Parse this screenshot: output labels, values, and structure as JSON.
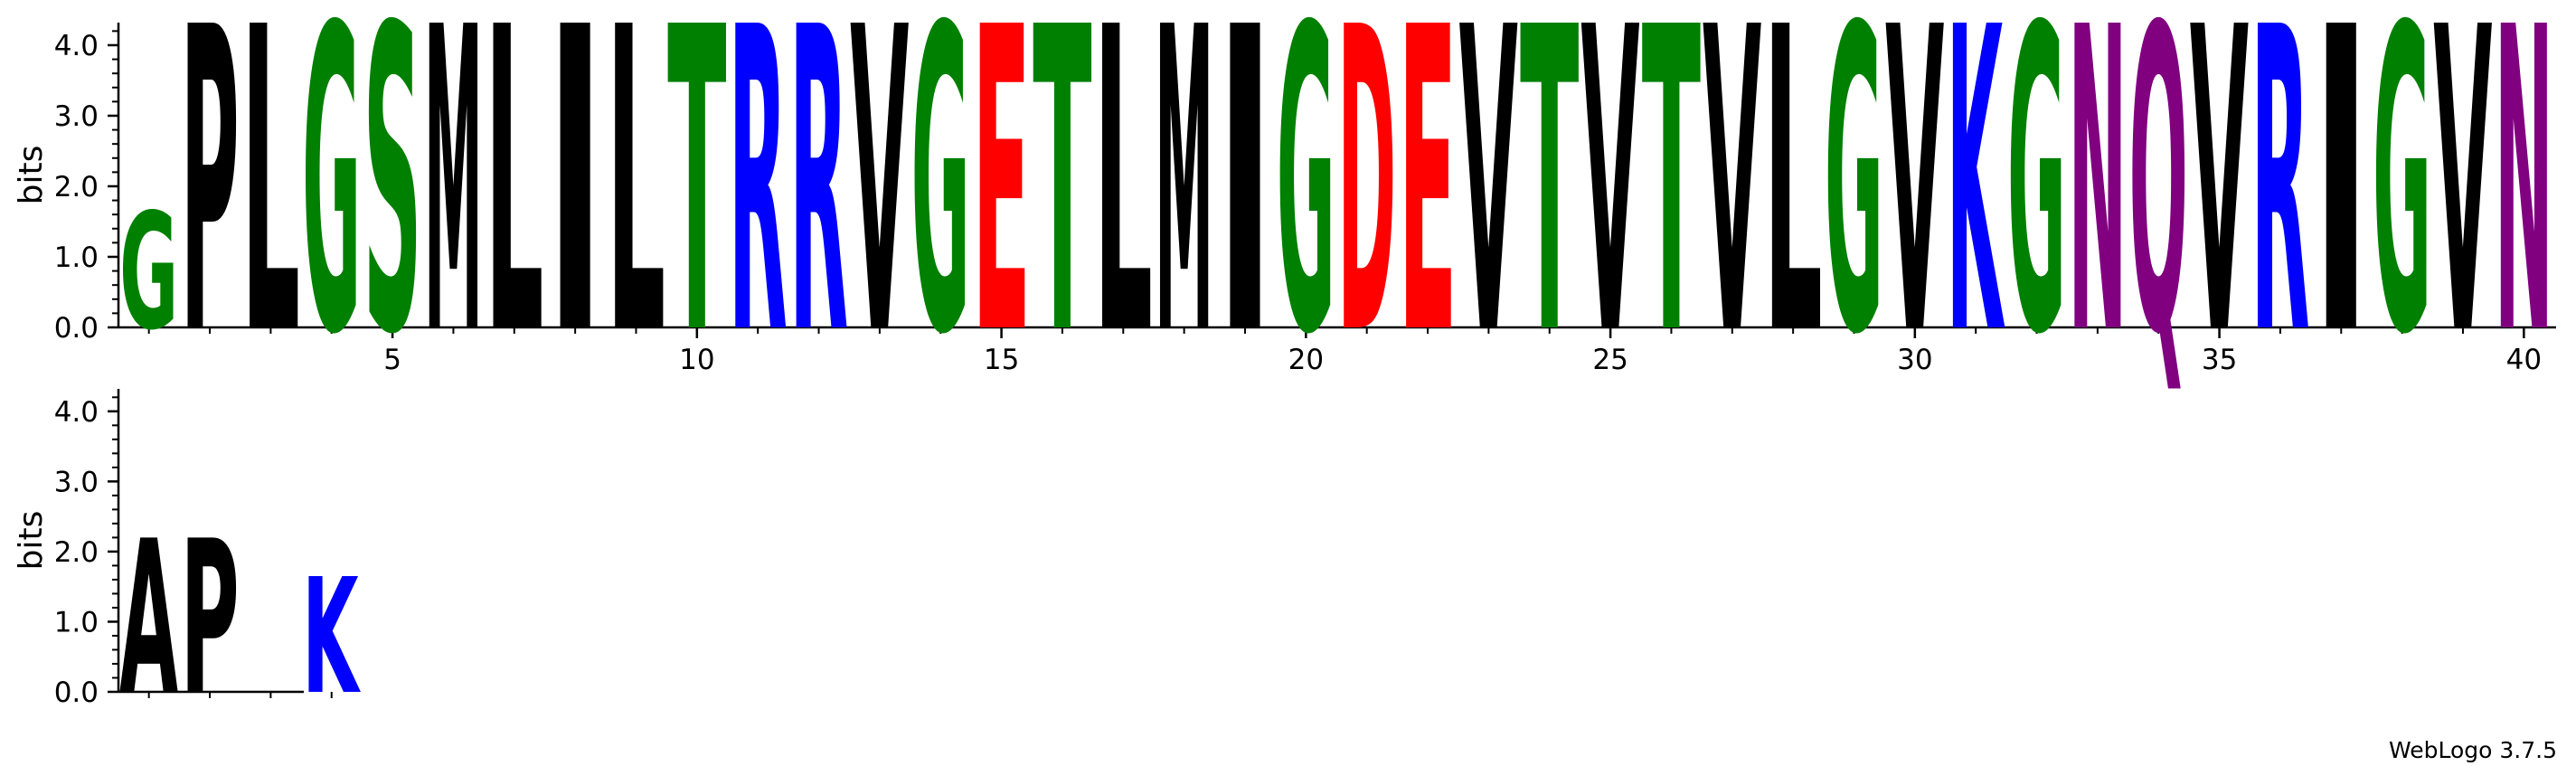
{
  "chart_data": {
    "type": "sequence-logo",
    "ylabel": "bits",
    "ylim": [
      0,
      4.32
    ],
    "yticks": [
      "0.0",
      "1.0",
      "2.0",
      "3.0",
      "4.0"
    ],
    "xticks": [
      5,
      10,
      15,
      20,
      25,
      30,
      35,
      40
    ],
    "credit": "WebLogo 3.7.5",
    "colors": {
      "A": "#000000",
      "P": "#000000",
      "L": "#000000",
      "S": "#008000",
      "M": "#000000",
      "I": "#000000",
      "T": "#008000",
      "R": "#0000ff",
      "V": "#000000",
      "G": "#008000",
      "E": "#ff0000",
      "D": "#ff0000",
      "K": "#0000ff",
      "N": "#800080",
      "Q": "#800080"
    },
    "rows": [
      {
        "positions": [
          {
            "pos": 1,
            "letter": "G",
            "bits": 1.65
          },
          {
            "pos": 2,
            "letter": "P",
            "bits": 4.32
          },
          {
            "pos": 3,
            "letter": "L",
            "bits": 4.32
          },
          {
            "pos": 4,
            "letter": "G",
            "bits": 4.32
          },
          {
            "pos": 5,
            "letter": "S",
            "bits": 4.32
          },
          {
            "pos": 6,
            "letter": "M",
            "bits": 4.32
          },
          {
            "pos": 7,
            "letter": "L",
            "bits": 4.32
          },
          {
            "pos": 8,
            "letter": "I",
            "bits": 4.32
          },
          {
            "pos": 9,
            "letter": "L",
            "bits": 4.32
          },
          {
            "pos": 10,
            "letter": "T",
            "bits": 4.32
          },
          {
            "pos": 11,
            "letter": "R",
            "bits": 4.32
          },
          {
            "pos": 12,
            "letter": "R",
            "bits": 4.32
          },
          {
            "pos": 13,
            "letter": "V",
            "bits": 4.32
          },
          {
            "pos": 14,
            "letter": "G",
            "bits": 4.32
          },
          {
            "pos": 15,
            "letter": "E",
            "bits": 4.32
          },
          {
            "pos": 16,
            "letter": "T",
            "bits": 4.32
          },
          {
            "pos": 17,
            "letter": "L",
            "bits": 4.32
          },
          {
            "pos": 18,
            "letter": "M",
            "bits": 4.32
          },
          {
            "pos": 19,
            "letter": "I",
            "bits": 4.32
          },
          {
            "pos": 20,
            "letter": "G",
            "bits": 4.32
          },
          {
            "pos": 21,
            "letter": "D",
            "bits": 4.32
          },
          {
            "pos": 22,
            "letter": "E",
            "bits": 4.32
          },
          {
            "pos": 23,
            "letter": "V",
            "bits": 4.32
          },
          {
            "pos": 24,
            "letter": "T",
            "bits": 4.32
          },
          {
            "pos": 25,
            "letter": "V",
            "bits": 4.32
          },
          {
            "pos": 26,
            "letter": "T",
            "bits": 4.32
          },
          {
            "pos": 27,
            "letter": "V",
            "bits": 4.32
          },
          {
            "pos": 28,
            "letter": "L",
            "bits": 4.32
          },
          {
            "pos": 29,
            "letter": "G",
            "bits": 4.32
          },
          {
            "pos": 30,
            "letter": "V",
            "bits": 4.32
          },
          {
            "pos": 31,
            "letter": "K",
            "bits": 4.32
          },
          {
            "pos": 32,
            "letter": "G",
            "bits": 4.32
          },
          {
            "pos": 33,
            "letter": "N",
            "bits": 4.32
          },
          {
            "pos": 34,
            "letter": "Q",
            "bits": 4.32
          },
          {
            "pos": 35,
            "letter": "V",
            "bits": 4.32
          },
          {
            "pos": 36,
            "letter": "R",
            "bits": 4.32
          },
          {
            "pos": 37,
            "letter": "I",
            "bits": 4.32
          },
          {
            "pos": 38,
            "letter": "G",
            "bits": 4.32
          },
          {
            "pos": 39,
            "letter": "V",
            "bits": 4.32
          },
          {
            "pos": 40,
            "letter": "N",
            "bits": 4.32
          }
        ]
      },
      {
        "positions": [
          {
            "pos": 41,
            "letter": "A",
            "bits": 2.2
          },
          {
            "pos": 42,
            "letter": "P",
            "bits": 2.2
          },
          {
            "pos": 43,
            "letter": "",
            "bits": 0
          },
          {
            "pos": 44,
            "letter": "K",
            "bits": 1.65
          }
        ]
      }
    ]
  }
}
